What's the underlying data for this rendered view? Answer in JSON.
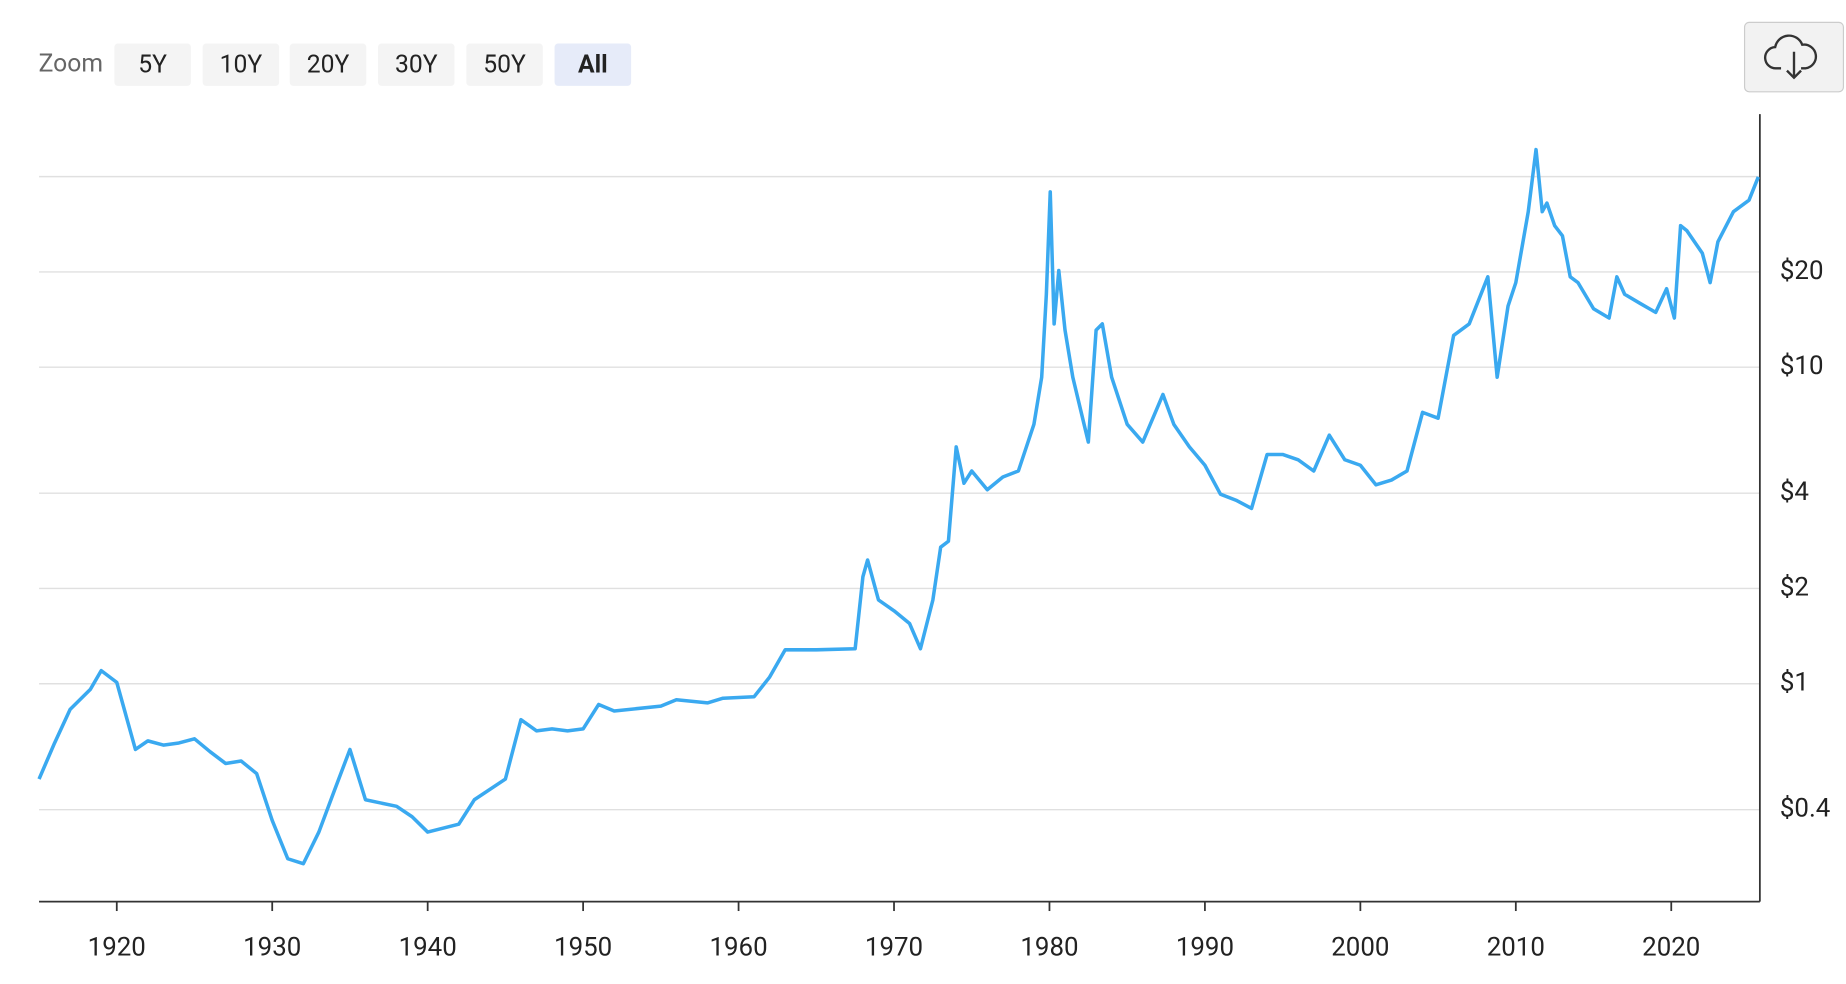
{
  "toolbar": {
    "zoom_label": "Zoom",
    "buttons": [
      "5Y",
      "10Y",
      "20Y",
      "30Y",
      "50Y",
      "All"
    ],
    "active": 5
  },
  "chart_data": {
    "type": "line",
    "color": "#3aa9f0",
    "log_y": true,
    "xlim": [
      1915,
      2025.7
    ],
    "xticks": [
      1920,
      1930,
      1940,
      1950,
      1960,
      1970,
      1980,
      1990,
      2000,
      2010,
      2020
    ],
    "ylim": [
      0.205,
      63
    ],
    "yticks": [
      {
        "value": 0.4,
        "label": "$0.4"
      },
      {
        "value": 1,
        "label": "$1"
      },
      {
        "value": 2,
        "label": "$2"
      },
      {
        "value": 4,
        "label": "$4"
      },
      {
        "value": 10,
        "label": "$10"
      },
      {
        "value": 20,
        "label": "$20"
      }
    ],
    "gridlines": [
      0.4,
      1,
      2,
      4,
      10,
      20,
      40
    ],
    "x": [
      1915,
      1916,
      1917,
      1918.3,
      1919,
      1920,
      1921.2,
      1922,
      1923,
      1924,
      1925,
      1926,
      1927,
      1928,
      1929,
      1930,
      1931,
      1932,
      1933,
      1934,
      1935,
      1936,
      1938,
      1939,
      1940,
      1942,
      1943,
      1945,
      1946,
      1947,
      1948,
      1949,
      1950,
      1951,
      1952,
      1955,
      1956,
      1958,
      1959,
      1961,
      1962,
      1963,
      1965,
      1967.5,
      1968,
      1968.3,
      1969,
      1970,
      1971,
      1971.7,
      1972.5,
      1973,
      1973.5,
      1974,
      1974.5,
      1975,
      1976,
      1977,
      1978,
      1979,
      1979.5,
      1979.8,
      1980.05,
      1980.3,
      1980.6,
      1981,
      1981.5,
      1982.5,
      1983,
      1983.4,
      1984,
      1985,
      1986,
      1987.3,
      1988,
      1989,
      1990,
      1991,
      1992,
      1993,
      1994,
      1995,
      1996,
      1997,
      1998,
      1999,
      2000,
      2001,
      2002,
      2003,
      2004,
      2005,
      2006,
      2007,
      2008.2,
      2008.8,
      2009.5,
      2010,
      2010.8,
      2011.3,
      2011.7,
      2012,
      2012.5,
      2013,
      2013.5,
      2014,
      2015,
      2016,
      2016.5,
      2017,
      2018,
      2019,
      2019.7,
      2020.2,
      2020.6,
      2021,
      2022,
      2022.5,
      2023,
      2024,
      2025,
      2025.6
    ],
    "values": [
      0.5,
      0.65,
      0.83,
      0.96,
      1.1,
      1.01,
      0.62,
      0.66,
      0.64,
      0.65,
      0.67,
      0.61,
      0.56,
      0.57,
      0.52,
      0.37,
      0.28,
      0.27,
      0.34,
      0.46,
      0.62,
      0.43,
      0.41,
      0.38,
      0.34,
      0.36,
      0.43,
      0.5,
      0.77,
      0.71,
      0.72,
      0.71,
      0.72,
      0.86,
      0.82,
      0.85,
      0.89,
      0.87,
      0.9,
      0.91,
      1.05,
      1.28,
      1.28,
      1.29,
      2.18,
      2.46,
      1.84,
      1.7,
      1.55,
      1.29,
      1.84,
      2.7,
      2.82,
      5.6,
      4.3,
      4.7,
      4.1,
      4.5,
      4.7,
      6.6,
      9.3,
      17,
      35.8,
      13.7,
      20.2,
      13.1,
      9.3,
      5.8,
      13.1,
      13.7,
      9.3,
      6.6,
      5.8,
      8.2,
      6.6,
      5.6,
      4.9,
      3.97,
      3.8,
      3.58,
      5.3,
      5.3,
      5.1,
      4.7,
      6.1,
      5.1,
      4.9,
      4.25,
      4.4,
      4.7,
      7.2,
      6.9,
      12.6,
      13.7,
      19.3,
      9.3,
      15.6,
      18.5,
      31,
      48.7,
      31,
      33,
      28,
      26,
      19.3,
      18.5,
      15.3,
      14.3,
      19.3,
      17,
      15.9,
      14.9,
      17.7,
      14.3,
      28,
      27,
      22.9,
      18.5,
      24.9,
      31,
      33.7,
      39.9
    ]
  }
}
